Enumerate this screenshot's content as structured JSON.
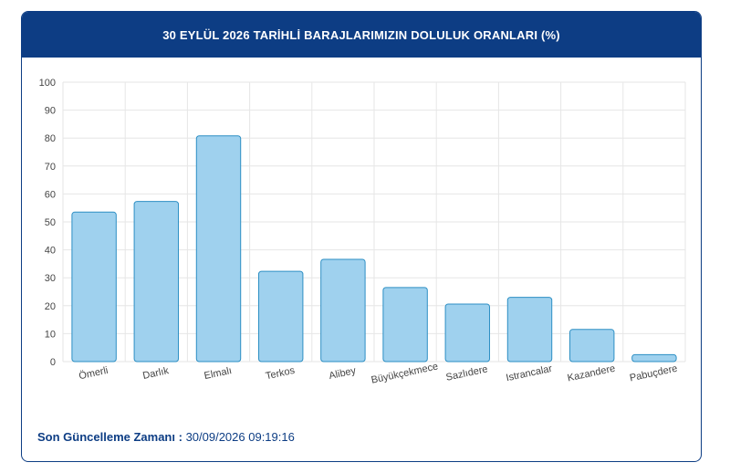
{
  "header": {
    "title": "30 EYLÜL 2026 TARİHLİ BARAJLARIMIZIN DOLULUK ORANLARI (%)"
  },
  "footer": {
    "label": "Son Güncelleme Zamanı :",
    "value": "30/09/2026 09:19:16"
  },
  "colors": {
    "header_bg": "#0d3d84",
    "bar_fill": "#9fd1ee",
    "bar_stroke": "#2d8fc4",
    "grid": "#e6e6e6"
  },
  "chart_data": {
    "type": "bar",
    "title": "30 EYLÜL 2026 TARİHLİ BARAJLARIMIZIN DOLULUK ORANLARI (%)",
    "xlabel": "",
    "ylabel": "",
    "categories": [
      "Ömerli",
      "Darlık",
      "Elmalı",
      "Terkos",
      "Alibey",
      "Büyükçekmece",
      "Sazlıdere",
      "Istrancalar",
      "Kazandere",
      "Pabuçdere"
    ],
    "values": [
      53.5,
      57.3,
      80.8,
      32.3,
      36.6,
      26.5,
      20.6,
      23.0,
      11.5,
      2.5
    ],
    "ylim": [
      0,
      100
    ],
    "yticks": [
      0,
      10,
      20,
      30,
      40,
      50,
      60,
      70,
      80,
      90,
      100
    ],
    "grid": true,
    "legend": "none"
  }
}
